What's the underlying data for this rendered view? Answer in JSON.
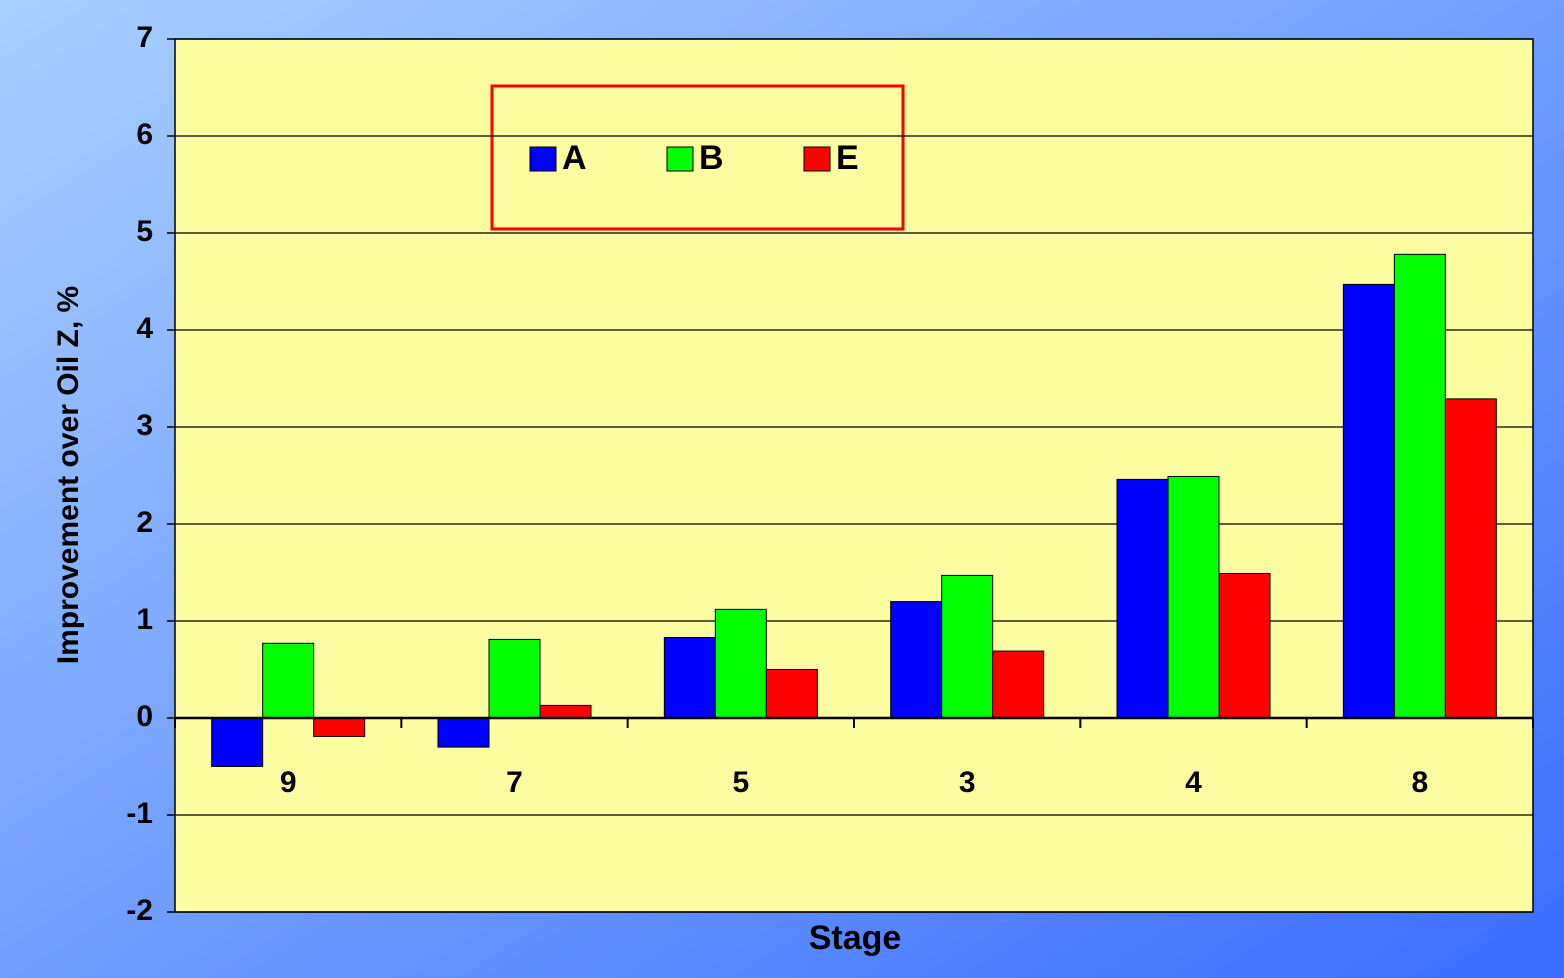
{
  "chart_data": {
    "type": "bar",
    "y_label": "Improvement over Oil Z, %",
    "x_label": "Stage",
    "categories": [
      "9",
      "7",
      "5",
      "3",
      "4",
      "8"
    ],
    "series": [
      {
        "name": "A",
        "color": "#0000ff",
        "values": [
          -0.5,
          -0.3,
          0.83,
          1.2,
          2.46,
          4.47
        ]
      },
      {
        "name": "B",
        "color": "#00ff00",
        "values": [
          0.77,
          0.81,
          1.12,
          1.47,
          2.49,
          4.78
        ]
      },
      {
        "name": "E",
        "color": "#ff0000",
        "values": [
          -0.19,
          0.13,
          0.5,
          0.69,
          1.49,
          3.29
        ]
      }
    ],
    "ylim": [
      -2,
      7
    ],
    "yticks": [
      -2,
      -1,
      0,
      1,
      2,
      3,
      4,
      5,
      6,
      7
    ],
    "grid": true,
    "legend": "top"
  }
}
